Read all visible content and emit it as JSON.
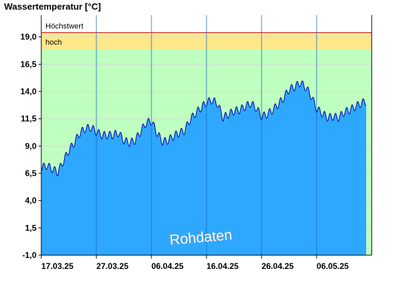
{
  "chart_data": {
    "type": "area",
    "title": "Wassertemperatur [°C]",
    "ylim": [
      -1.0,
      21.0
    ],
    "yticks": [
      {
        "value": -1.0,
        "label": "-1,0"
      },
      {
        "value": 1.5,
        "label": "1,5"
      },
      {
        "value": 4.0,
        "label": "4,0"
      },
      {
        "value": 6.5,
        "label": "6,5"
      },
      {
        "value": 9.0,
        "label": "9,0"
      },
      {
        "value": 11.5,
        "label": "11,5"
      },
      {
        "value": 14.0,
        "label": "14,0"
      },
      {
        "value": 16.5,
        "label": "16,5"
      },
      {
        "value": 19.0,
        "label": "19,0"
      }
    ],
    "xlim": [
      "2025-03-17",
      "2025-05-16"
    ],
    "xticks": [
      {
        "date": "2025-03-17",
        "label": "17.03.25"
      },
      {
        "date": "2025-03-27",
        "label": "27.03.25"
      },
      {
        "date": "2025-04-06",
        "label": "06.04.25"
      },
      {
        "date": "2025-04-16",
        "label": "16.04.25"
      },
      {
        "date": "2025-04-26",
        "label": "26.04.25"
      },
      {
        "date": "2025-05-06",
        "label": "06.05.25"
      }
    ],
    "bands": [
      {
        "label": "",
        "from": -1.0,
        "to": 17.9,
        "color": "#bfffbf"
      },
      {
        "label": "hoch",
        "from": 17.9,
        "to": 19.4,
        "color": "#ffe88a"
      },
      {
        "label": "Höchstwert",
        "from": 19.4,
        "to": 21.0,
        "color": "#ffffff",
        "line_color": "#cc0000"
      }
    ],
    "annotations": [
      {
        "text": "Rohdaten"
      }
    ],
    "series": [
      {
        "color": "#2ea8ff",
        "line_color": "#0000aa",
        "points": [
          [
            "2025-03-17",
            7.0
          ],
          [
            "2025-03-18",
            7.2
          ],
          [
            "2025-03-19",
            6.9
          ],
          [
            "2025-03-20",
            6.6
          ],
          [
            "2025-03-21",
            7.6
          ],
          [
            "2025-03-22",
            8.6
          ],
          [
            "2025-03-23",
            9.3
          ],
          [
            "2025-03-24",
            10.2
          ],
          [
            "2025-03-25",
            10.6
          ],
          [
            "2025-03-26",
            10.7
          ],
          [
            "2025-03-27",
            10.3
          ],
          [
            "2025-03-28",
            10.0
          ],
          [
            "2025-03-29",
            10.0
          ],
          [
            "2025-03-30",
            10.0
          ],
          [
            "2025-03-31",
            10.2
          ],
          [
            "2025-04-01",
            9.5
          ],
          [
            "2025-04-02",
            9.3
          ],
          [
            "2025-04-03",
            9.5
          ],
          [
            "2025-04-04",
            10.3
          ],
          [
            "2025-04-05",
            11.1
          ],
          [
            "2025-04-06",
            11.3
          ],
          [
            "2025-04-07",
            10.2
          ],
          [
            "2025-04-08",
            9.4
          ],
          [
            "2025-04-09",
            9.5
          ],
          [
            "2025-04-10",
            9.9
          ],
          [
            "2025-04-11",
            10.2
          ],
          [
            "2025-04-12",
            10.4
          ],
          [
            "2025-04-13",
            11.4
          ],
          [
            "2025-04-14",
            12.0
          ],
          [
            "2025-04-15",
            12.5
          ],
          [
            "2025-04-16",
            13.0
          ],
          [
            "2025-04-17",
            13.2
          ],
          [
            "2025-04-18",
            12.9
          ],
          [
            "2025-04-19",
            11.6
          ],
          [
            "2025-04-20",
            11.9
          ],
          [
            "2025-04-21",
            12.2
          ],
          [
            "2025-04-22",
            12.3
          ],
          [
            "2025-04-23",
            12.6
          ],
          [
            "2025-04-24",
            12.9
          ],
          [
            "2025-04-25",
            12.5
          ],
          [
            "2025-04-26",
            11.7
          ],
          [
            "2025-04-27",
            11.9
          ],
          [
            "2025-04-28",
            12.3
          ],
          [
            "2025-04-29",
            12.8
          ],
          [
            "2025-04-30",
            13.4
          ],
          [
            "2025-05-01",
            14.2
          ],
          [
            "2025-05-02",
            14.4
          ],
          [
            "2025-05-03",
            14.8
          ],
          [
            "2025-05-04",
            14.4
          ],
          [
            "2025-05-05",
            13.6
          ],
          [
            "2025-05-06",
            12.4
          ],
          [
            "2025-05-07",
            12.0
          ],
          [
            "2025-05-08",
            11.6
          ],
          [
            "2025-05-09",
            11.7
          ],
          [
            "2025-05-10",
            11.6
          ],
          [
            "2025-05-11",
            12.1
          ],
          [
            "2025-05-12",
            12.3
          ],
          [
            "2025-05-13",
            12.6
          ],
          [
            "2025-05-14",
            12.9
          ],
          [
            "2025-05-15",
            13.1
          ]
        ]
      }
    ]
  }
}
